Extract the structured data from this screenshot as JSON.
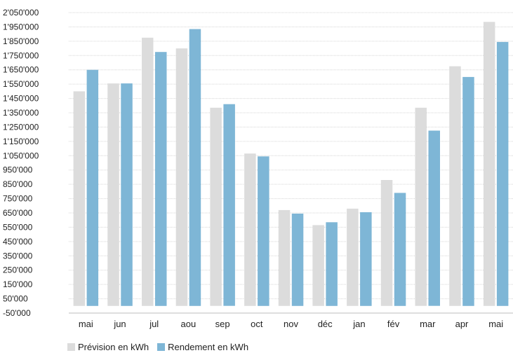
{
  "chart_data": {
    "type": "bar",
    "categories": [
      "mai",
      "jun",
      "jul",
      "aou",
      "sep",
      "oct",
      "nov",
      "déc",
      "jan",
      "fév",
      "mar",
      "apr",
      "mai"
    ],
    "series": [
      {
        "name": "Prévision en kWh",
        "color": "#dcdcdc",
        "values": [
          1500000,
          1555000,
          1875000,
          1800000,
          1385000,
          1065000,
          670000,
          565000,
          680000,
          880000,
          1385000,
          1675000,
          1985000
        ]
      },
      {
        "name": "Rendement en kWh",
        "color": "#7eb6d6",
        "values": [
          1650000,
          1555000,
          1775000,
          1935000,
          1410000,
          1045000,
          645000,
          585000,
          655000,
          790000,
          1225000,
          1600000,
          1845000
        ]
      }
    ],
    "yticks": [
      "2'050'000",
      "1'950'000",
      "1'850'000",
      "1'750'000",
      "1'650'000",
      "1'550'000",
      "1'450'000",
      "1'350'000",
      "1'250'000",
      "1'150'000",
      "1'050'000",
      "950'000",
      "850'000",
      "750'000",
      "650'000",
      "550'000",
      "450'000",
      "350'000",
      "250'000",
      "150'000",
      "50'000",
      "-50'000"
    ],
    "ylim": [
      -50000,
      2050000
    ],
    "grid": true,
    "legend_position": "bottom-left"
  }
}
